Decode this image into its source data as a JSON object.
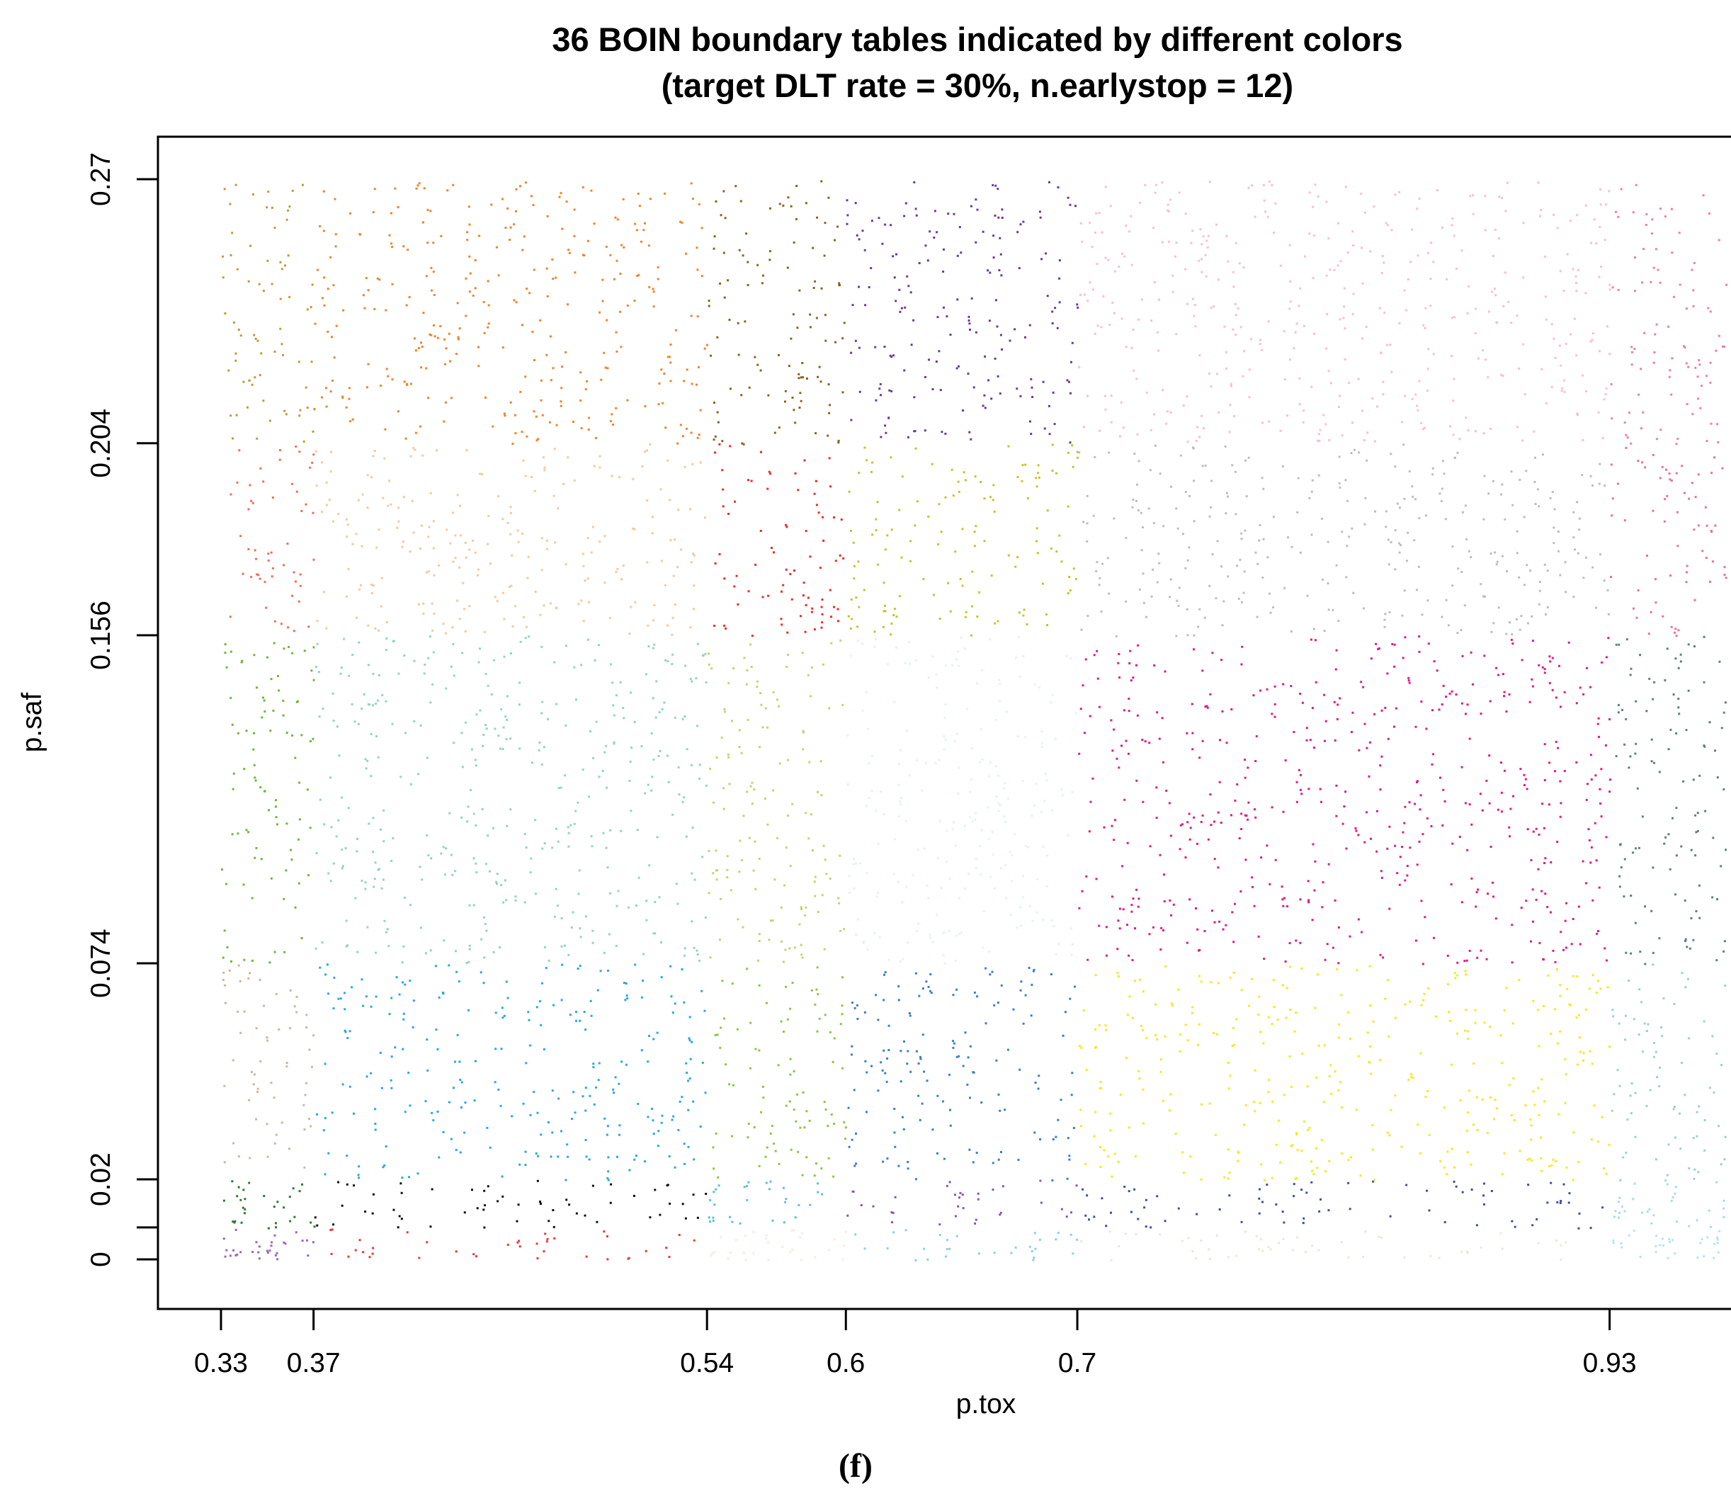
{
  "chart_data": {
    "type": "scatter",
    "title": "36 BOIN boundary tables indicated by different colors",
    "subtitle": "(target DLT rate = 30%, n.earlystop = 12)",
    "xlabel": "p.tox",
    "ylabel": "p.saf",
    "panel_label": "(f)",
    "x_ticks": [
      "0.33",
      "0.37",
      "0.54",
      "0.6",
      "0.7",
      "0.93"
    ],
    "y_ticks": [
      "0",
      "0.02",
      "0.074",
      "0.156",
      "0.204",
      "0.27"
    ],
    "x_breaks": [
      0.33,
      0.37,
      0.54,
      0.6,
      0.7,
      0.93,
      0.98
    ],
    "y_breaks": [
      0,
      0.008,
      0.02,
      0.074,
      0.156,
      0.204,
      0.27
    ],
    "xlim": [
      0.33,
      0.98
    ],
    "ylim": [
      0,
      0.27
    ],
    "scatter_density": 0.0015,
    "region_colors": [
      [
        "#9966bb",
        "#e8383a",
        "#fde9dc",
        "#8ccfe0",
        "#ece7d2",
        "#b8e2ee"
      ],
      [
        "#2a7a34",
        "#111111",
        "#5cc0d2",
        "#8c55aa",
        "#3d4fa3",
        "#a8dae6"
      ],
      [
        "#cdb59e",
        "#27a8e0",
        "#8cc63f",
        "#3a7fca",
        "#f2eb18",
        "#9ccfcf"
      ],
      [
        "#70b63a",
        "#93d3c0",
        "#bdd66d",
        "#e4f1f5",
        "#e01a81",
        "#5e7f80"
      ],
      [
        "#ee6e5e",
        "#f3c89f",
        "#ea2c2c",
        "#c4c32a",
        "#bdbdbd",
        "#e4729a"
      ],
      [
        "#bf9a36",
        "#f2822a",
        "#856520",
        "#6b3a97",
        "#f7bfd0",
        "#ec7fa8"
      ]
    ]
  }
}
